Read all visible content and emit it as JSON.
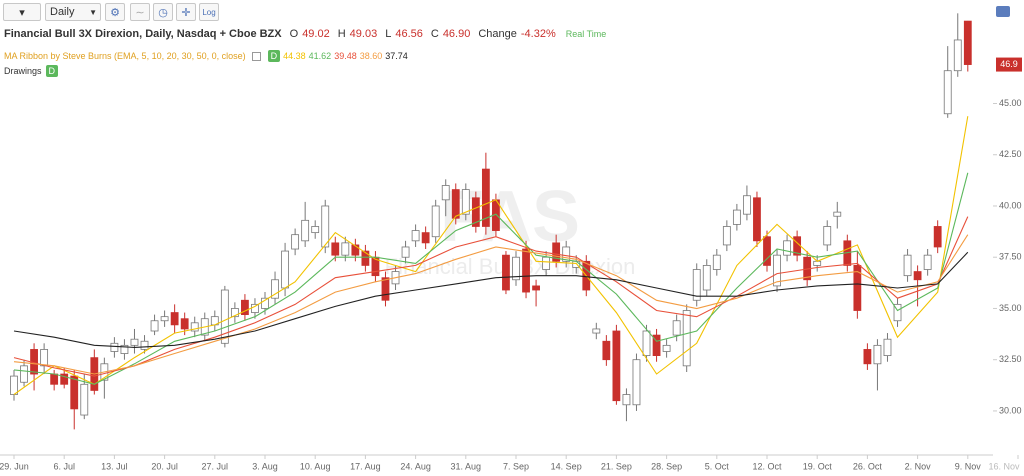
{
  "toolbar": {
    "interval": "Daily",
    "scale": "Log"
  },
  "header": {
    "title": "Financial Bull 3X Direxion, Daily, Nasdaq + Cboe BZX",
    "open_tag": "O",
    "high_tag": "H",
    "low_tag": "L",
    "close_tag": "C",
    "close_label": "46.90",
    "change_tag": "Change",
    "change": "-4.32%",
    "status": "Real Time"
  },
  "indicator": {
    "name": "MA Ribbon by Steve Burns (EMA, 5, 10, 20, 30, 50, 0, close)",
    "badge": "D",
    "legend_labels": [
      "44.38",
      "41.62",
      "39.48",
      "38.60",
      "37.74"
    ]
  },
  "drawings": {
    "label": "Drawings",
    "badge": "D"
  },
  "watermark": {
    "symbol": "FAS",
    "name": "Financial Bull 3X Direxion"
  },
  "chart_data": {
    "type": "candlestick",
    "categories": [
      "29. Jun",
      null,
      null,
      null,
      null,
      "6. Jul",
      null,
      null,
      null,
      null,
      "13. Jul",
      null,
      null,
      null,
      null,
      "20. Jul",
      null,
      null,
      null,
      null,
      "27. Jul",
      null,
      null,
      null,
      null,
      "3. Aug",
      null,
      null,
      null,
      null,
      "10. Aug",
      null,
      null,
      null,
      null,
      "17. Aug",
      null,
      null,
      null,
      null,
      "24. Aug",
      null,
      null,
      null,
      null,
      "31. Aug",
      null,
      null,
      null,
      null,
      "7. Sep",
      null,
      null,
      null,
      null,
      "14. Sep",
      null,
      null,
      null,
      null,
      "21. Sep",
      null,
      null,
      null,
      null,
      "28. Sep",
      null,
      null,
      null,
      null,
      "5. Oct",
      null,
      null,
      null,
      null,
      "12. Oct",
      null,
      null,
      null,
      null,
      "19. Oct",
      null,
      null,
      null,
      null,
      "26. Oct",
      null,
      null,
      null,
      null,
      "2. Nov",
      null,
      null,
      null,
      null,
      "9. Nov",
      null,
      null,
      null,
      null,
      "16. Nov"
    ],
    "candles": {
      "open": [
        30.8,
        31.4,
        33.0,
        32.2,
        31.8,
        31.8,
        31.7,
        29.8,
        32.6,
        31.5,
        32.9,
        32.8,
        33.2,
        33.0,
        33.9,
        34.4,
        34.8,
        34.5,
        33.9,
        33.7,
        34.2,
        33.3,
        34.6,
        35.4,
        34.8,
        35.0,
        35.5,
        36.0,
        37.9,
        38.3,
        38.7,
        38.0,
        38.2,
        37.6,
        38.1,
        37.8,
        37.5,
        36.5,
        36.2,
        37.5,
        38.3,
        38.7,
        38.5,
        40.3,
        40.8,
        39.6,
        40.4,
        41.8,
        40.3,
        37.6,
        36.4,
        37.9,
        36.1,
        36.9,
        38.2,
        37.3,
        37.0,
        37.3,
        33.8,
        33.4,
        33.9,
        30.3,
        30.3,
        32.7,
        33.7,
        32.9,
        33.7,
        32.2,
        35.4,
        35.9,
        36.9,
        38.1,
        39.1,
        39.6,
        40.4,
        38.5,
        36.1,
        37.6,
        38.5,
        37.5,
        37.1,
        38.1,
        39.5,
        38.3,
        37.1,
        33.0,
        32.3,
        32.7,
        34.4,
        36.6,
        36.8,
        36.9,
        39.0,
        44.5,
        46.6,
        49.02,
        null,
        null,
        null,
        null,
        null
      ],
      "high": [
        32.0,
        32.5,
        33.3,
        33.3,
        32.0,
        32.1,
        32.0,
        31.8,
        33.0,
        32.6,
        33.6,
        33.5,
        34.0,
        33.7,
        34.7,
        34.9,
        35.2,
        34.8,
        34.6,
        34.8,
        34.9,
        36.1,
        35.3,
        35.7,
        35.5,
        35.8,
        36.8,
        38.2,
        38.9,
        40.2,
        39.3,
        40.3,
        38.5,
        38.5,
        38.4,
        38.1,
        37.8,
        36.8,
        37.1,
        38.3,
        39.1,
        39.0,
        40.3,
        41.3,
        41.1,
        41.1,
        40.7,
        42.6,
        40.6,
        37.8,
        37.8,
        38.3,
        36.4,
        37.8,
        38.6,
        38.3,
        37.6,
        37.6,
        34.3,
        33.7,
        34.2,
        31.1,
        32.8,
        34.2,
        34.0,
        33.5,
        34.7,
        35.2,
        37.2,
        37.4,
        37.9,
        39.3,
        40.1,
        41.0,
        40.7,
        38.8,
        37.9,
        38.6,
        38.8,
        37.8,
        37.6,
        39.3,
        40.2,
        38.6,
        37.8,
        33.3,
        33.5,
        33.8,
        35.5,
        37.9,
        37.1,
        37.9,
        39.3,
        47.8,
        49.4,
        49.03,
        null,
        null,
        null,
        null,
        null
      ],
      "low": [
        30.5,
        31.2,
        31.0,
        31.8,
        31.0,
        31.1,
        29.1,
        29.6,
        30.8,
        30.6,
        32.6,
        32.5,
        32.8,
        32.8,
        33.7,
        34.1,
        33.8,
        33.7,
        33.6,
        33.4,
        33.9,
        33.1,
        34.3,
        34.4,
        34.5,
        34.7,
        35.2,
        35.6,
        37.6,
        38.0,
        38.4,
        37.7,
        37.3,
        37.3,
        37.3,
        36.8,
        36.3,
        35.1,
        35.9,
        37.2,
        38.0,
        37.9,
        38.2,
        39.5,
        39.1,
        39.3,
        38.7,
        38.6,
        38.5,
        35.7,
        36.1,
        35.5,
        35.1,
        36.6,
        37.0,
        37.0,
        36.7,
        35.6,
        33.5,
        32.2,
        30.3,
        29.5,
        30.0,
        32.4,
        32.4,
        32.6,
        33.4,
        31.9,
        35.1,
        35.6,
        36.6,
        37.8,
        38.8,
        39.3,
        38.0,
        36.8,
        35.8,
        37.3,
        37.3,
        36.1,
        36.8,
        37.8,
        38.9,
        36.8,
        34.5,
        32.0,
        31.0,
        32.4,
        34.1,
        36.3,
        35.1,
        36.6,
        37.7,
        44.3,
        46.3,
        46.56,
        null,
        null,
        null,
        null,
        null
      ],
      "close": [
        31.7,
        32.2,
        31.8,
        33.0,
        31.3,
        31.3,
        30.1,
        31.3,
        31.0,
        32.3,
        33.3,
        33.2,
        33.5,
        33.4,
        34.4,
        34.6,
        34.2,
        34.0,
        34.3,
        34.5,
        34.6,
        35.9,
        35.0,
        34.7,
        35.2,
        35.5,
        36.4,
        37.8,
        38.6,
        39.3,
        39.0,
        40.0,
        37.6,
        38.2,
        37.6,
        37.1,
        36.6,
        35.4,
        36.8,
        38.0,
        38.8,
        38.2,
        40.0,
        41.0,
        39.4,
        40.8,
        39.0,
        39.0,
        38.8,
        35.9,
        37.5,
        35.8,
        35.9,
        37.5,
        37.3,
        38.0,
        37.3,
        35.9,
        34.0,
        32.5,
        30.5,
        30.8,
        32.5,
        33.9,
        32.7,
        33.2,
        34.4,
        34.9,
        36.9,
        37.1,
        37.6,
        39.0,
        39.8,
        40.5,
        38.3,
        37.1,
        37.6,
        38.3,
        37.6,
        36.4,
        37.3,
        39.0,
        39.7,
        37.1,
        34.9,
        32.3,
        33.2,
        33.5,
        35.2,
        37.6,
        36.4,
        37.6,
        38.0,
        46.6,
        48.1,
        46.9,
        null,
        null,
        null,
        null,
        null
      ],
      "up_color": "#ffffff",
      "down_color": "#c9302c"
    },
    "ribbon": [
      {
        "color": "#f2c200",
        "x": [
          0,
          4,
          8,
          12,
          16,
          20,
          24,
          28,
          32,
          36,
          40,
          44,
          48,
          52,
          56,
          60,
          64,
          68,
          72,
          76,
          80,
          84,
          88,
          92,
          95
        ],
        "values": [
          30.8,
          32.2,
          31.3,
          32.6,
          33.8,
          34.2,
          35.1,
          36.3,
          38.7,
          37.4,
          36.8,
          39.5,
          40.3,
          37.3,
          37.2,
          34.8,
          31.8,
          33.3,
          37.1,
          39.1,
          37.3,
          38.1,
          33.6,
          35.8,
          44.38
        ]
      },
      {
        "color": "#5cb85c",
        "x": [
          0,
          4,
          8,
          12,
          16,
          20,
          24,
          28,
          32,
          36,
          40,
          44,
          48,
          52,
          56,
          60,
          64,
          68,
          72,
          76,
          80,
          84,
          88,
          92,
          95
        ],
        "values": [
          32.0,
          31.8,
          31.3,
          32.3,
          33.4,
          33.9,
          34.6,
          35.8,
          37.5,
          37.5,
          37.2,
          38.8,
          39.6,
          37.6,
          37.3,
          35.7,
          33.4,
          33.9,
          36.0,
          37.9,
          37.5,
          37.8,
          34.9,
          36.0,
          41.62
        ]
      },
      {
        "color": "#e8503a",
        "x": [
          0,
          4,
          8,
          12,
          16,
          20,
          24,
          28,
          32,
          36,
          40,
          44,
          48,
          52,
          56,
          60,
          64,
          68,
          72,
          76,
          80,
          84,
          88,
          92,
          95
        ],
        "values": [
          32.6,
          32.1,
          31.7,
          32.2,
          33.0,
          33.6,
          34.3,
          35.2,
          36.5,
          36.8,
          37.1,
          38.0,
          38.5,
          37.8,
          37.5,
          36.3,
          34.9,
          34.6,
          35.6,
          36.7,
          37.0,
          37.2,
          35.5,
          36.2,
          39.48
        ]
      },
      {
        "color": "#f39c42",
        "x": [
          0,
          4,
          8,
          12,
          16,
          20,
          24,
          28,
          32,
          36,
          40,
          44,
          48,
          52,
          56,
          60,
          64,
          68,
          72,
          76,
          80,
          84,
          88,
          92,
          95
        ],
        "values": [
          32.4,
          32.2,
          31.8,
          32.2,
          32.8,
          33.4,
          34.0,
          34.8,
          35.8,
          36.3,
          36.7,
          37.4,
          38.0,
          37.7,
          37.4,
          36.6,
          35.4,
          35.0,
          35.5,
          36.3,
          36.6,
          36.8,
          35.8,
          36.3,
          38.6
        ]
      },
      {
        "color": "#222222",
        "x": [
          0,
          4,
          8,
          12,
          16,
          20,
          24,
          28,
          32,
          36,
          40,
          44,
          48,
          52,
          56,
          60,
          64,
          68,
          72,
          76,
          80,
          84,
          88,
          92,
          95
        ],
        "values": [
          33.9,
          33.6,
          33.2,
          33.1,
          33.2,
          33.5,
          33.9,
          34.5,
          35.1,
          35.6,
          35.9,
          36.2,
          36.5,
          36.6,
          36.6,
          36.4,
          36.0,
          35.6,
          35.6,
          35.9,
          36.1,
          36.2,
          36.0,
          36.2,
          37.74
        ]
      }
    ],
    "ylim": [
      27.85,
      50.05
    ],
    "yticks": [
      {
        "value": 30,
        "label": "30.00"
      },
      {
        "value": 32.5,
        "label": "32.50"
      },
      {
        "value": 35,
        "label": "35.00"
      },
      {
        "value": 37.5,
        "label": "37.50"
      },
      {
        "value": 40,
        "label": "40.00"
      },
      {
        "value": 42.5,
        "label": "42.50"
      },
      {
        "value": 45,
        "label": "45.00"
      }
    ],
    "grid": false
  }
}
